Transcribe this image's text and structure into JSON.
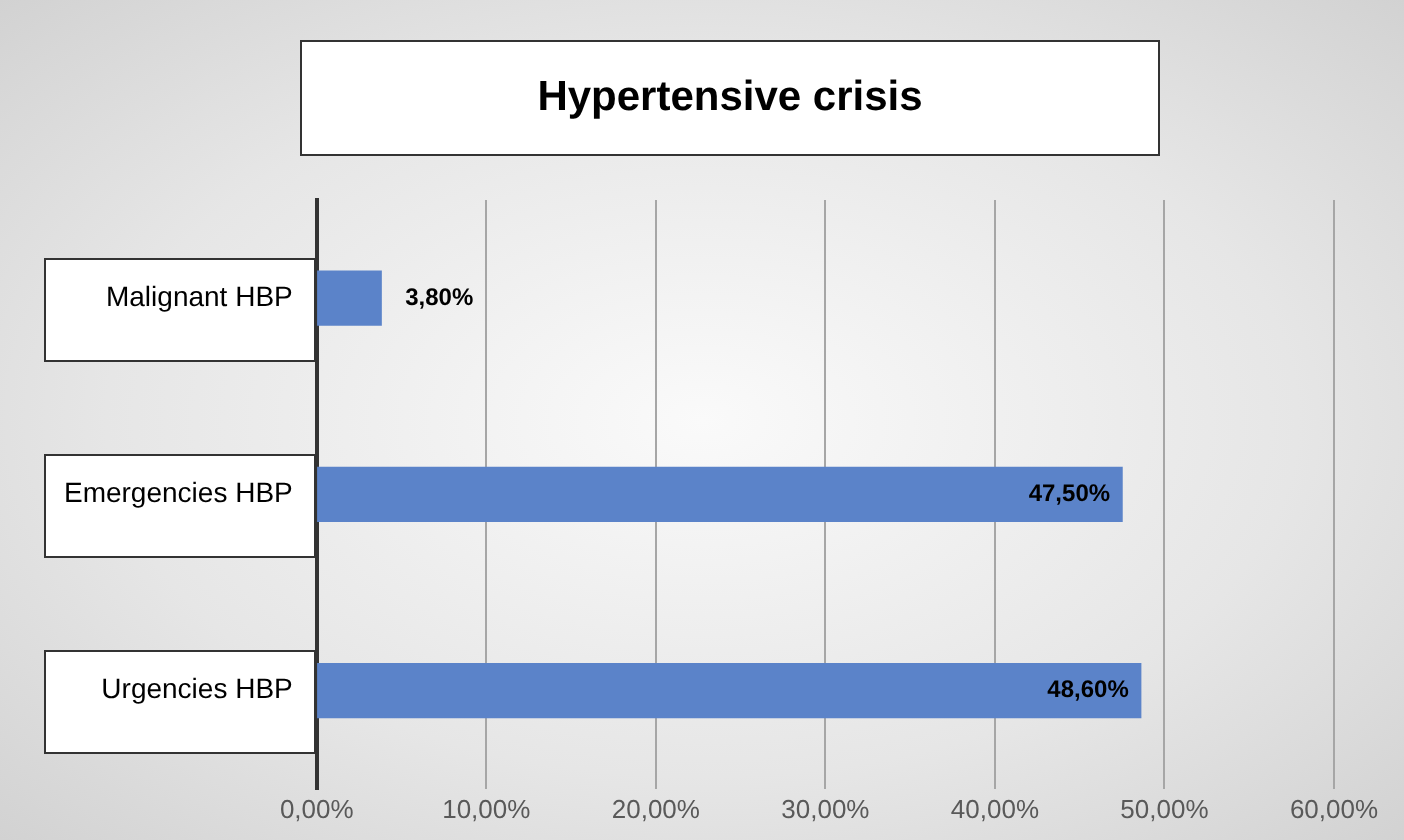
{
  "chart_data": {
    "type": "bar",
    "orientation": "horizontal",
    "title": "Hypertensive crisis",
    "categories": [
      "Malignant HBP",
      "Emergencies HBP",
      "Urgencies HBP"
    ],
    "values": [
      3.8,
      47.5,
      48.6
    ],
    "color": "#5b83c9",
    "value_labels": [
      "3,80%",
      "47,50%",
      "48,60%"
    ],
    "xlim": [
      0,
      60
    ],
    "xticks": [
      {
        "value": 0,
        "label": "0,00%"
      },
      {
        "value": 10,
        "label": "10,00%"
      },
      {
        "value": 20,
        "label": "20,00%"
      },
      {
        "value": 30,
        "label": "30,00%"
      },
      {
        "value": 40,
        "label": "40,00%"
      },
      {
        "value": 50,
        "label": "50,00%"
      },
      {
        "value": 60,
        "label": "60,00%"
      }
    ],
    "grid": "x",
    "legend": false
  }
}
